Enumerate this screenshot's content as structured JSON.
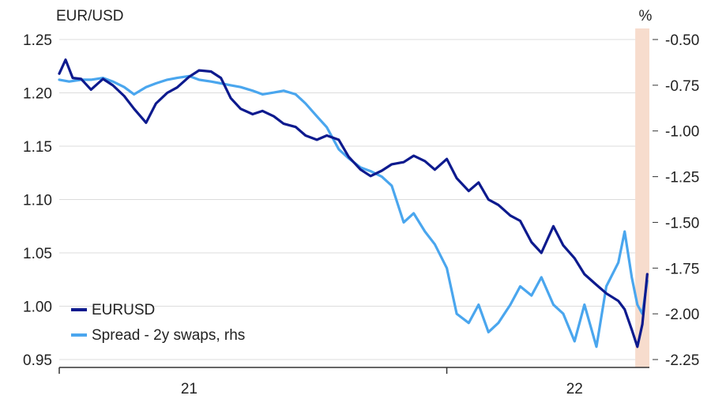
{
  "chart_data": {
    "type": "line",
    "title": "",
    "ylabel_left": "EUR/USD",
    "ylabel_right": "%",
    "y_left": {
      "min": 0.95,
      "max": 1.25,
      "ticks": [
        "1.25",
        "1.20",
        "1.15",
        "1.10",
        "1.05",
        "1.00",
        "0.95"
      ]
    },
    "y_right": {
      "min": -2.25,
      "max": -0.5,
      "ticks": [
        "-0.50",
        "-0.75",
        "-1.00",
        "-1.25",
        "-1.50",
        "-1.75",
        "-2.00",
        "-2.25"
      ]
    },
    "x_range": [
      "2020-07-01",
      "2022-10-15"
    ],
    "x_ticks": [
      {
        "date": "2020-07-01",
        "label": ""
      },
      {
        "date": "2021-01-01",
        "label": "21"
      },
      {
        "date": "2022-01-01",
        "label": ""
      },
      {
        "date": "2022-07-01",
        "label": "22"
      }
    ],
    "highlight_range": [
      "2022-09-25",
      "2022-10-15"
    ],
    "grid": true,
    "legend_position": "bottom-left",
    "series": [
      {
        "name": "EURUSD",
        "axis": "left",
        "color": "#0d1a8e",
        "points": [
          [
            "2020-07-01",
            1.218
          ],
          [
            "2020-07-10",
            1.231
          ],
          [
            "2020-07-20",
            1.214
          ],
          [
            "2020-08-01",
            1.213
          ],
          [
            "2020-08-15",
            1.203
          ],
          [
            "2020-09-01",
            1.213
          ],
          [
            "2020-09-15",
            1.207
          ],
          [
            "2020-10-01",
            1.197
          ],
          [
            "2020-10-15",
            1.185
          ],
          [
            "2020-11-01",
            1.172
          ],
          [
            "2020-11-15",
            1.19
          ],
          [
            "2020-12-01",
            1.2
          ],
          [
            "2020-12-15",
            1.205
          ],
          [
            "2021-01-01",
            1.215
          ],
          [
            "2021-01-15",
            1.221
          ],
          [
            "2021-02-01",
            1.22
          ],
          [
            "2021-02-15",
            1.214
          ],
          [
            "2021-03-01",
            1.195
          ],
          [
            "2021-03-15",
            1.185
          ],
          [
            "2021-04-01",
            1.18
          ],
          [
            "2021-04-15",
            1.183
          ],
          [
            "2021-05-01",
            1.178
          ],
          [
            "2021-05-15",
            1.171
          ],
          [
            "2021-06-01",
            1.168
          ],
          [
            "2021-06-15",
            1.16
          ],
          [
            "2021-07-01",
            1.156
          ],
          [
            "2021-07-15",
            1.16
          ],
          [
            "2021-08-01",
            1.156
          ],
          [
            "2021-08-15",
            1.14
          ],
          [
            "2021-09-01",
            1.128
          ],
          [
            "2021-09-15",
            1.122
          ],
          [
            "2021-10-01",
            1.127
          ],
          [
            "2021-10-15",
            1.133
          ],
          [
            "2021-11-01",
            1.135
          ],
          [
            "2021-11-15",
            1.141
          ],
          [
            "2021-12-01",
            1.136
          ],
          [
            "2021-12-15",
            1.128
          ],
          [
            "2022-01-01",
            1.138
          ],
          [
            "2022-01-15",
            1.12
          ],
          [
            "2022-02-01",
            1.108
          ],
          [
            "2022-02-15",
            1.116
          ],
          [
            "2022-03-01",
            1.1
          ],
          [
            "2022-03-15",
            1.095
          ],
          [
            "2022-04-01",
            1.085
          ],
          [
            "2022-04-15",
            1.08
          ],
          [
            "2022-05-01",
            1.06
          ],
          [
            "2022-05-15",
            1.05
          ],
          [
            "2022-06-01",
            1.075
          ],
          [
            "2022-06-15",
            1.057
          ],
          [
            "2022-07-01",
            1.045
          ],
          [
            "2022-07-15",
            1.03
          ],
          [
            "2022-08-01",
            1.02
          ],
          [
            "2022-08-15",
            1.012
          ],
          [
            "2022-09-01",
            1.005
          ],
          [
            "2022-09-10",
            0.997
          ],
          [
            "2022-09-20",
            0.978
          ],
          [
            "2022-09-28",
            0.962
          ],
          [
            "2022-10-05",
            0.983
          ],
          [
            "2022-10-12",
            1.03
          ]
        ]
      },
      {
        "name": "Spread - 2y swaps, rhs",
        "axis": "right",
        "color": "#4aa6ee",
        "points": [
          [
            "2020-07-01",
            -0.72
          ],
          [
            "2020-07-15",
            -0.73
          ],
          [
            "2020-08-01",
            -0.72
          ],
          [
            "2020-08-15",
            -0.72
          ],
          [
            "2020-09-01",
            -0.71
          ],
          [
            "2020-09-15",
            -0.73
          ],
          [
            "2020-10-01",
            -0.76
          ],
          [
            "2020-10-15",
            -0.8
          ],
          [
            "2020-11-01",
            -0.76
          ],
          [
            "2020-11-15",
            -0.74
          ],
          [
            "2020-12-01",
            -0.72
          ],
          [
            "2020-12-15",
            -0.71
          ],
          [
            "2021-01-01",
            -0.7
          ],
          [
            "2021-01-15",
            -0.72
          ],
          [
            "2021-02-01",
            -0.73
          ],
          [
            "2021-02-15",
            -0.74
          ],
          [
            "2021-03-01",
            -0.75
          ],
          [
            "2021-03-15",
            -0.76
          ],
          [
            "2021-04-01",
            -0.78
          ],
          [
            "2021-04-15",
            -0.8
          ],
          [
            "2021-05-01",
            -0.79
          ],
          [
            "2021-05-15",
            -0.78
          ],
          [
            "2021-06-01",
            -0.8
          ],
          [
            "2021-06-15",
            -0.85
          ],
          [
            "2021-07-01",
            -0.92
          ],
          [
            "2021-07-15",
            -0.98
          ],
          [
            "2021-08-01",
            -1.1
          ],
          [
            "2021-08-15",
            -1.15
          ],
          [
            "2021-09-01",
            -1.2
          ],
          [
            "2021-09-15",
            -1.22
          ],
          [
            "2021-10-01",
            -1.25
          ],
          [
            "2021-10-15",
            -1.3
          ],
          [
            "2021-11-01",
            -1.5
          ],
          [
            "2021-11-15",
            -1.45
          ],
          [
            "2021-12-01",
            -1.55
          ],
          [
            "2021-12-15",
            -1.62
          ],
          [
            "2022-01-01",
            -1.75
          ],
          [
            "2022-01-15",
            -2.0
          ],
          [
            "2022-02-01",
            -2.05
          ],
          [
            "2022-02-15",
            -1.95
          ],
          [
            "2022-03-01",
            -2.1
          ],
          [
            "2022-03-15",
            -2.05
          ],
          [
            "2022-04-01",
            -1.95
          ],
          [
            "2022-04-15",
            -1.85
          ],
          [
            "2022-05-01",
            -1.9
          ],
          [
            "2022-05-15",
            -1.8
          ],
          [
            "2022-06-01",
            -1.95
          ],
          [
            "2022-06-15",
            -2.0
          ],
          [
            "2022-07-01",
            -2.15
          ],
          [
            "2022-07-15",
            -1.95
          ],
          [
            "2022-08-01",
            -2.18
          ],
          [
            "2022-08-15",
            -1.85
          ],
          [
            "2022-09-01",
            -1.72
          ],
          [
            "2022-09-10",
            -1.55
          ],
          [
            "2022-09-20",
            -1.8
          ],
          [
            "2022-09-28",
            -1.95
          ],
          [
            "2022-10-05",
            -2.0
          ],
          [
            "2022-10-12",
            -1.82
          ]
        ]
      }
    ]
  }
}
